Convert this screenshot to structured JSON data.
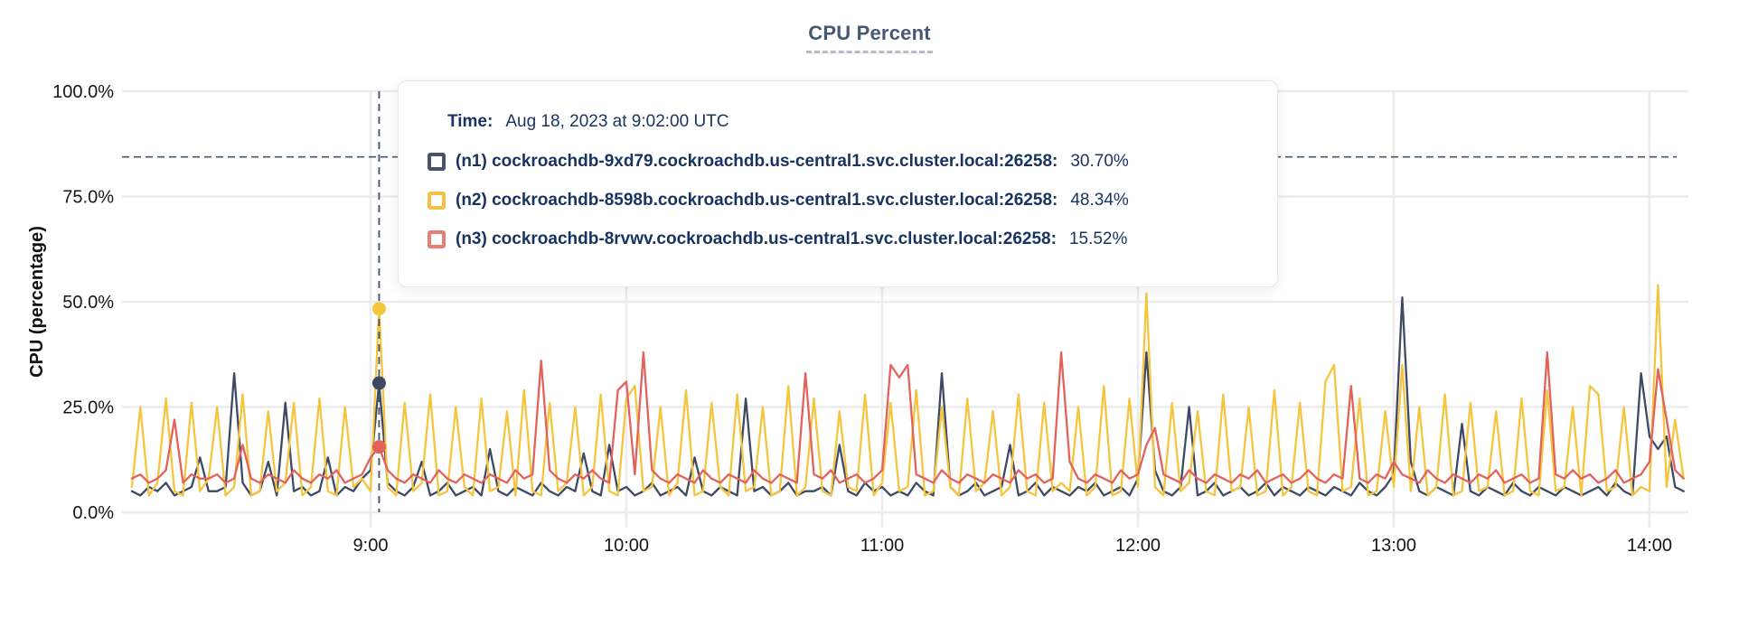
{
  "chart": {
    "title": "CPU Percent",
    "y_axis_title": "CPU (percentage)"
  },
  "tooltip": {
    "time_label": "Time:",
    "time_value": "Aug 18, 2023 at 9:02:00 UTC",
    "rows": [
      {
        "label": "(n1) cockroachdb-9xd79.cockroachdb.us-central1.svc.cluster.local:26258:",
        "value": "30.70%",
        "color": "#47536b"
      },
      {
        "label": "(n2) cockroachdb-8598b.cockroachdb.us-central1.svc.cluster.local:26258:",
        "value": "48.34%",
        "color": "#f2c342"
      },
      {
        "label": "(n3) cockroachdb-8rvwv.cockroachdb.us-central1.svc.cluster.local:26258:",
        "value": "15.52%",
        "color": "#e57f76"
      }
    ]
  },
  "chart_data": {
    "type": "line",
    "title": "CPU Percent",
    "xlabel": "",
    "ylabel": "CPU (percentage)",
    "ylim": [
      0,
      100
    ],
    "grid": true,
    "y_ticks": [
      {
        "value": 100,
        "label": "100.0%"
      },
      {
        "value": 75,
        "label": "75.0%"
      },
      {
        "value": 50,
        "label": "50.0%"
      },
      {
        "value": 25,
        "label": "25.0%"
      },
      {
        "value": 0,
        "label": "0.0%"
      }
    ],
    "x_ticks": [
      {
        "minute": 540,
        "label": "9:00"
      },
      {
        "minute": 600,
        "label": "10:00"
      },
      {
        "minute": 660,
        "label": "11:00"
      },
      {
        "minute": 720,
        "label": "12:00"
      },
      {
        "minute": 780,
        "label": "13:00"
      },
      {
        "minute": 840,
        "label": "14:00"
      }
    ],
    "start_minute": 484,
    "step_minutes": 2,
    "threshold_percent": 84.4,
    "hover": {
      "minute": 542,
      "time_label": "Aug 18, 2023 at 9:02:00 UTC",
      "points": [
        {
          "series": "n2",
          "value": 48.34
        },
        {
          "series": "n1",
          "value": 30.7
        },
        {
          "series": "n3",
          "value": 15.52
        }
      ]
    },
    "series": [
      {
        "id": "n1",
        "name": "(n1) cockroachdb-9xd79.cockroachdb.us-central1.svc.cluster.local:26258",
        "color": "#3e4a63",
        "values": [
          5,
          4,
          6,
          5,
          7,
          4,
          5,
          6,
          13,
          5,
          5,
          6,
          33,
          7,
          4,
          5,
          12,
          4,
          26,
          5,
          6,
          4,
          5,
          13,
          4,
          6,
          5,
          8,
          10,
          30.7,
          7,
          5,
          4,
          6,
          12,
          4,
          5,
          7,
          4,
          5,
          6,
          4,
          15,
          5,
          4,
          6,
          5,
          4,
          7,
          5,
          4,
          6,
          5,
          14,
          5,
          4,
          16,
          5,
          6,
          4,
          5,
          7,
          4,
          5,
          6,
          4,
          13,
          5,
          4,
          6,
          5,
          4,
          27,
          5,
          6,
          4,
          5,
          7,
          4,
          5,
          5,
          6,
          4,
          16,
          5,
          4,
          7,
          5,
          6,
          4,
          5,
          4,
          7,
          5,
          4,
          33,
          6,
          4,
          5,
          7,
          4,
          5,
          6,
          16,
          4,
          5,
          7,
          4,
          6,
          5,
          4,
          6,
          5,
          7,
          4,
          5,
          6,
          4,
          8,
          38,
          10,
          5,
          4,
          6,
          25,
          4,
          5,
          7,
          4,
          5,
          6,
          4,
          5,
          7,
          4,
          6,
          5,
          4,
          6,
          5,
          4,
          6,
          5,
          4,
          7,
          5,
          4,
          6,
          9,
          51,
          12,
          5,
          4,
          6,
          5,
          4,
          21,
          5,
          4,
          6,
          5,
          4,
          7,
          5,
          4,
          6,
          5,
          4,
          6,
          5,
          4,
          5,
          6,
          4,
          7,
          5,
          4,
          33,
          18,
          15,
          18,
          6,
          5
        ]
      },
      {
        "id": "n2",
        "name": "(n2) cockroachdb-8598b.cockroachdb.us-central1.svc.cluster.local:26258",
        "color": "#f5c53e",
        "values": [
          6,
          25,
          4,
          7,
          27,
          5,
          4,
          26,
          5,
          8,
          25,
          4,
          6,
          28,
          4,
          5,
          24,
          5,
          7,
          26,
          4,
          6,
          27,
          5,
          4,
          25,
          6,
          8,
          5,
          48.34,
          6,
          4,
          26,
          5,
          7,
          28,
          4,
          5,
          25,
          6,
          4,
          27,
          5,
          6,
          24,
          4,
          29,
          5,
          4,
          26,
          5,
          7,
          25,
          4,
          6,
          28,
          5,
          4,
          27,
          30,
          5,
          6,
          25,
          4,
          7,
          29,
          4,
          5,
          26,
          6,
          4,
          28,
          5,
          6,
          25,
          4,
          5,
          30,
          4,
          6,
          27,
          5,
          4,
          24,
          6,
          5,
          28,
          4,
          7,
          26,
          5,
          6,
          29,
          4,
          5,
          25,
          6,
          4,
          27,
          5,
          7,
          24,
          4,
          6,
          28,
          5,
          4,
          26,
          5,
          7,
          5,
          25,
          4,
          6,
          30,
          4,
          5,
          27,
          6,
          52,
          6,
          4,
          26,
          5,
          7,
          24,
          5,
          4,
          28,
          5,
          6,
          25,
          4,
          5,
          29,
          4,
          6,
          26,
          5,
          4,
          31,
          35,
          5,
          6,
          27,
          4,
          5,
          24,
          6,
          35,
          5,
          25,
          4,
          6,
          28,
          4,
          5,
          26,
          5,
          6,
          24,
          4,
          5,
          27,
          5,
          4,
          29,
          5,
          6,
          25,
          4,
          30,
          28,
          5,
          6,
          25,
          4,
          6,
          5,
          54,
          6,
          22,
          8
        ]
      },
      {
        "id": "n3",
        "name": "(n3) cockroachdb-8rvwv.cockroachdb.us-central1.svc.cluster.local:26258",
        "color": "#e2625c",
        "values": [
          8,
          9,
          7,
          8,
          10,
          22,
          7,
          9,
          8,
          8,
          9,
          7,
          8,
          16,
          8,
          7,
          9,
          8,
          7,
          10,
          8,
          7,
          9,
          8,
          10,
          7,
          8,
          9,
          13,
          15.52,
          10,
          8,
          7,
          9,
          8,
          7,
          10,
          8,
          7,
          9,
          8,
          7,
          9,
          8,
          7,
          10,
          8,
          9,
          36,
          10,
          8,
          7,
          9,
          8,
          10,
          8,
          7,
          29,
          31,
          9,
          38,
          10,
          8,
          7,
          9,
          8,
          7,
          10,
          8,
          7,
          9,
          8,
          7,
          10,
          8,
          7,
          9,
          8,
          7,
          33,
          9,
          8,
          10,
          7,
          8,
          9,
          7,
          8,
          10,
          35,
          32,
          35,
          9,
          8,
          7,
          10,
          8,
          7,
          9,
          8,
          7,
          9,
          8,
          7,
          10,
          8,
          9,
          7,
          8,
          38,
          12,
          8,
          7,
          9,
          8,
          7,
          10,
          8,
          9,
          16,
          20,
          9,
          8,
          7,
          10,
          8,
          7,
          9,
          8,
          7,
          9,
          8,
          10,
          7,
          8,
          9,
          7,
          8,
          10,
          8,
          7,
          9,
          8,
          30,
          8,
          7,
          9,
          8,
          12,
          9,
          8,
          7,
          10,
          8,
          7,
          9,
          8,
          7,
          9,
          8,
          10,
          7,
          8,
          9,
          7,
          8,
          38,
          9,
          8,
          10,
          8,
          9,
          7,
          8,
          10,
          7,
          8,
          9,
          12,
          34,
          22,
          10,
          8
        ]
      }
    ]
  }
}
